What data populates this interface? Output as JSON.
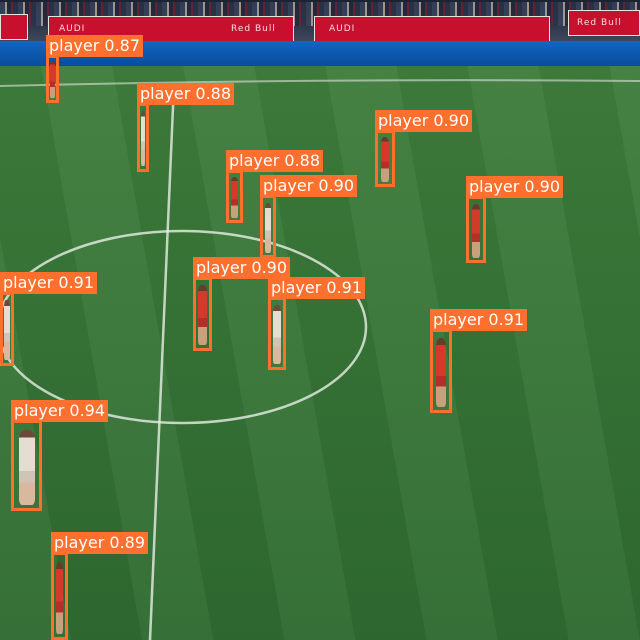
{
  "boards": [
    {
      "text": "AUDI"
    },
    {
      "text": "Red Bull"
    },
    {
      "text": "AUDI"
    },
    {
      "text": "Red Bull"
    }
  ],
  "detections": [
    {
      "label": "player",
      "score": "0.87",
      "kit": "red"
    },
    {
      "label": "player",
      "score": "0.88",
      "kit": "white"
    },
    {
      "label": "player",
      "score": "0.90",
      "kit": "red"
    },
    {
      "label": "player",
      "score": "0.88",
      "kit": "red"
    },
    {
      "label": "player",
      "score": "0.90",
      "kit": "white"
    },
    {
      "label": "player",
      "score": "0.90",
      "kit": "red"
    },
    {
      "label": "player",
      "score": "0.91",
      "kit": "white"
    },
    {
      "label": "player",
      "score": "0.90",
      "kit": "red"
    },
    {
      "label": "player",
      "score": "0.91",
      "kit": "white"
    },
    {
      "label": "player",
      "score": "0.91",
      "kit": "red"
    },
    {
      "label": "player",
      "score": "0.94",
      "kit": "white"
    },
    {
      "label": "player",
      "score": "0.89",
      "kit": "red"
    }
  ],
  "colors": {
    "box": "#ff6f2d",
    "pitch": "#387537",
    "ribbon": "#0b56ab",
    "board": "#c8102e"
  }
}
